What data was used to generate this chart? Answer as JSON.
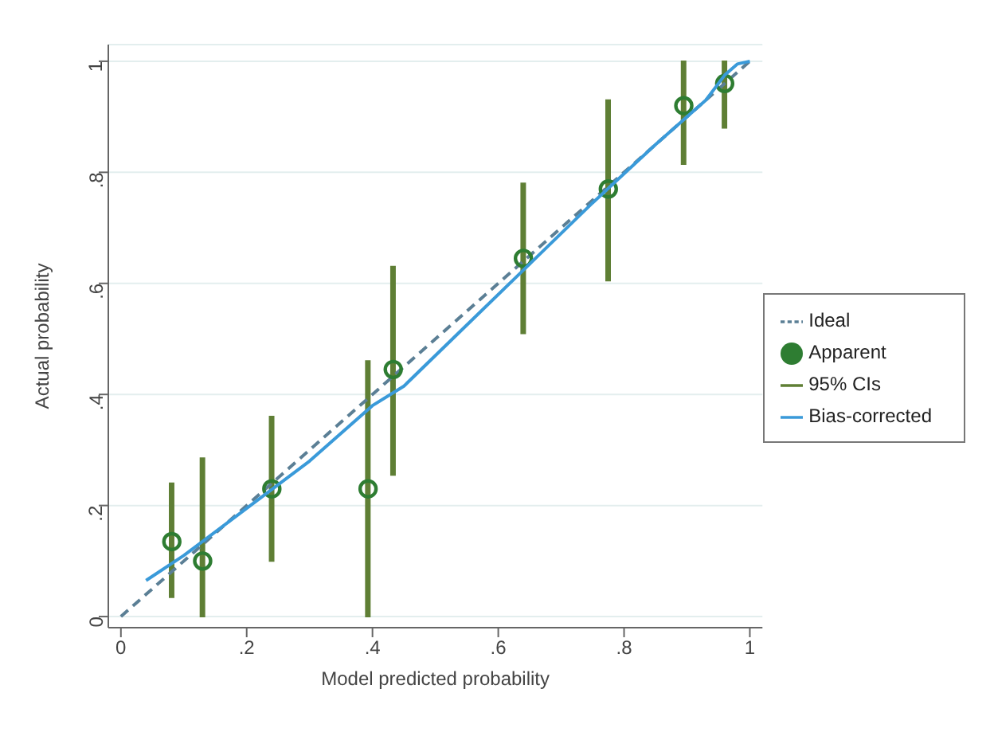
{
  "chart_data": {
    "type": "scatter",
    "xlabel": "Model predicted probability",
    "ylabel": "Actual probability",
    "xlim": [
      -0.02,
      1.02
    ],
    "ylim": [
      -0.02,
      1.03
    ],
    "xticks": [
      0,
      {
        "value": 0.2,
        "label": ".2"
      },
      {
        "value": 0.4,
        "label": ".4"
      },
      {
        "value": 0.6,
        "label": ".6"
      },
      {
        "value": 0.8,
        "label": ".8"
      },
      1
    ],
    "yticks": [
      0,
      {
        "value": 0.2,
        "label": ".2"
      },
      {
        "value": 0.4,
        "label": ".4"
      },
      {
        "value": 0.6,
        "label": ".6"
      },
      {
        "value": 0.8,
        "label": ".8"
      },
      1
    ],
    "grid": "y",
    "legend": "right",
    "series": [
      {
        "name": "Ideal",
        "type": "line",
        "line_style": "dashed",
        "marker": "none",
        "color": "#5b7f95",
        "x": [
          0,
          1
        ],
        "values": [
          0,
          1
        ]
      },
      {
        "name": "Apparent",
        "marker": "circle",
        "color": "#2e7d32",
        "x": [
          0.081,
          0.13,
          0.24,
          0.393,
          0.433,
          0.64,
          0.775,
          0.895,
          0.96
        ],
        "values": [
          0.135,
          0.1,
          0.23,
          0.23,
          0.445,
          0.645,
          0.77,
          0.92,
          0.96
        ]
      },
      {
        "name": "95% CIs",
        "type": "bar",
        "color": "#5f7f35",
        "x": [
          0.081,
          0.13,
          0.24,
          0.393,
          0.433,
          0.64,
          0.775,
          0.895,
          0.96
        ],
        "base": [
          0.035,
          0,
          0.1,
          0,
          0.255,
          0.51,
          0.605,
          0.815,
          0.88
        ],
        "values": [
          0.205,
          0.285,
          0.26,
          0.46,
          0.375,
          0.27,
          0.325,
          0.185,
          0.12
        ]
      },
      {
        "name": "Bias-corrected",
        "type": "line",
        "line_style": "solid",
        "marker": "none",
        "color": "#3a9ad9",
        "x": [
          0.04,
          0.1,
          0.2,
          0.3,
          0.4,
          0.45,
          0.55,
          0.65,
          0.75,
          0.85,
          0.93,
          0.96,
          0.98,
          1
        ],
        "values": [
          0.065,
          0.11,
          0.195,
          0.28,
          0.38,
          0.415,
          0.525,
          0.635,
          0.745,
          0.85,
          0.93,
          0.975,
          0.995,
          1
        ]
      }
    ]
  }
}
